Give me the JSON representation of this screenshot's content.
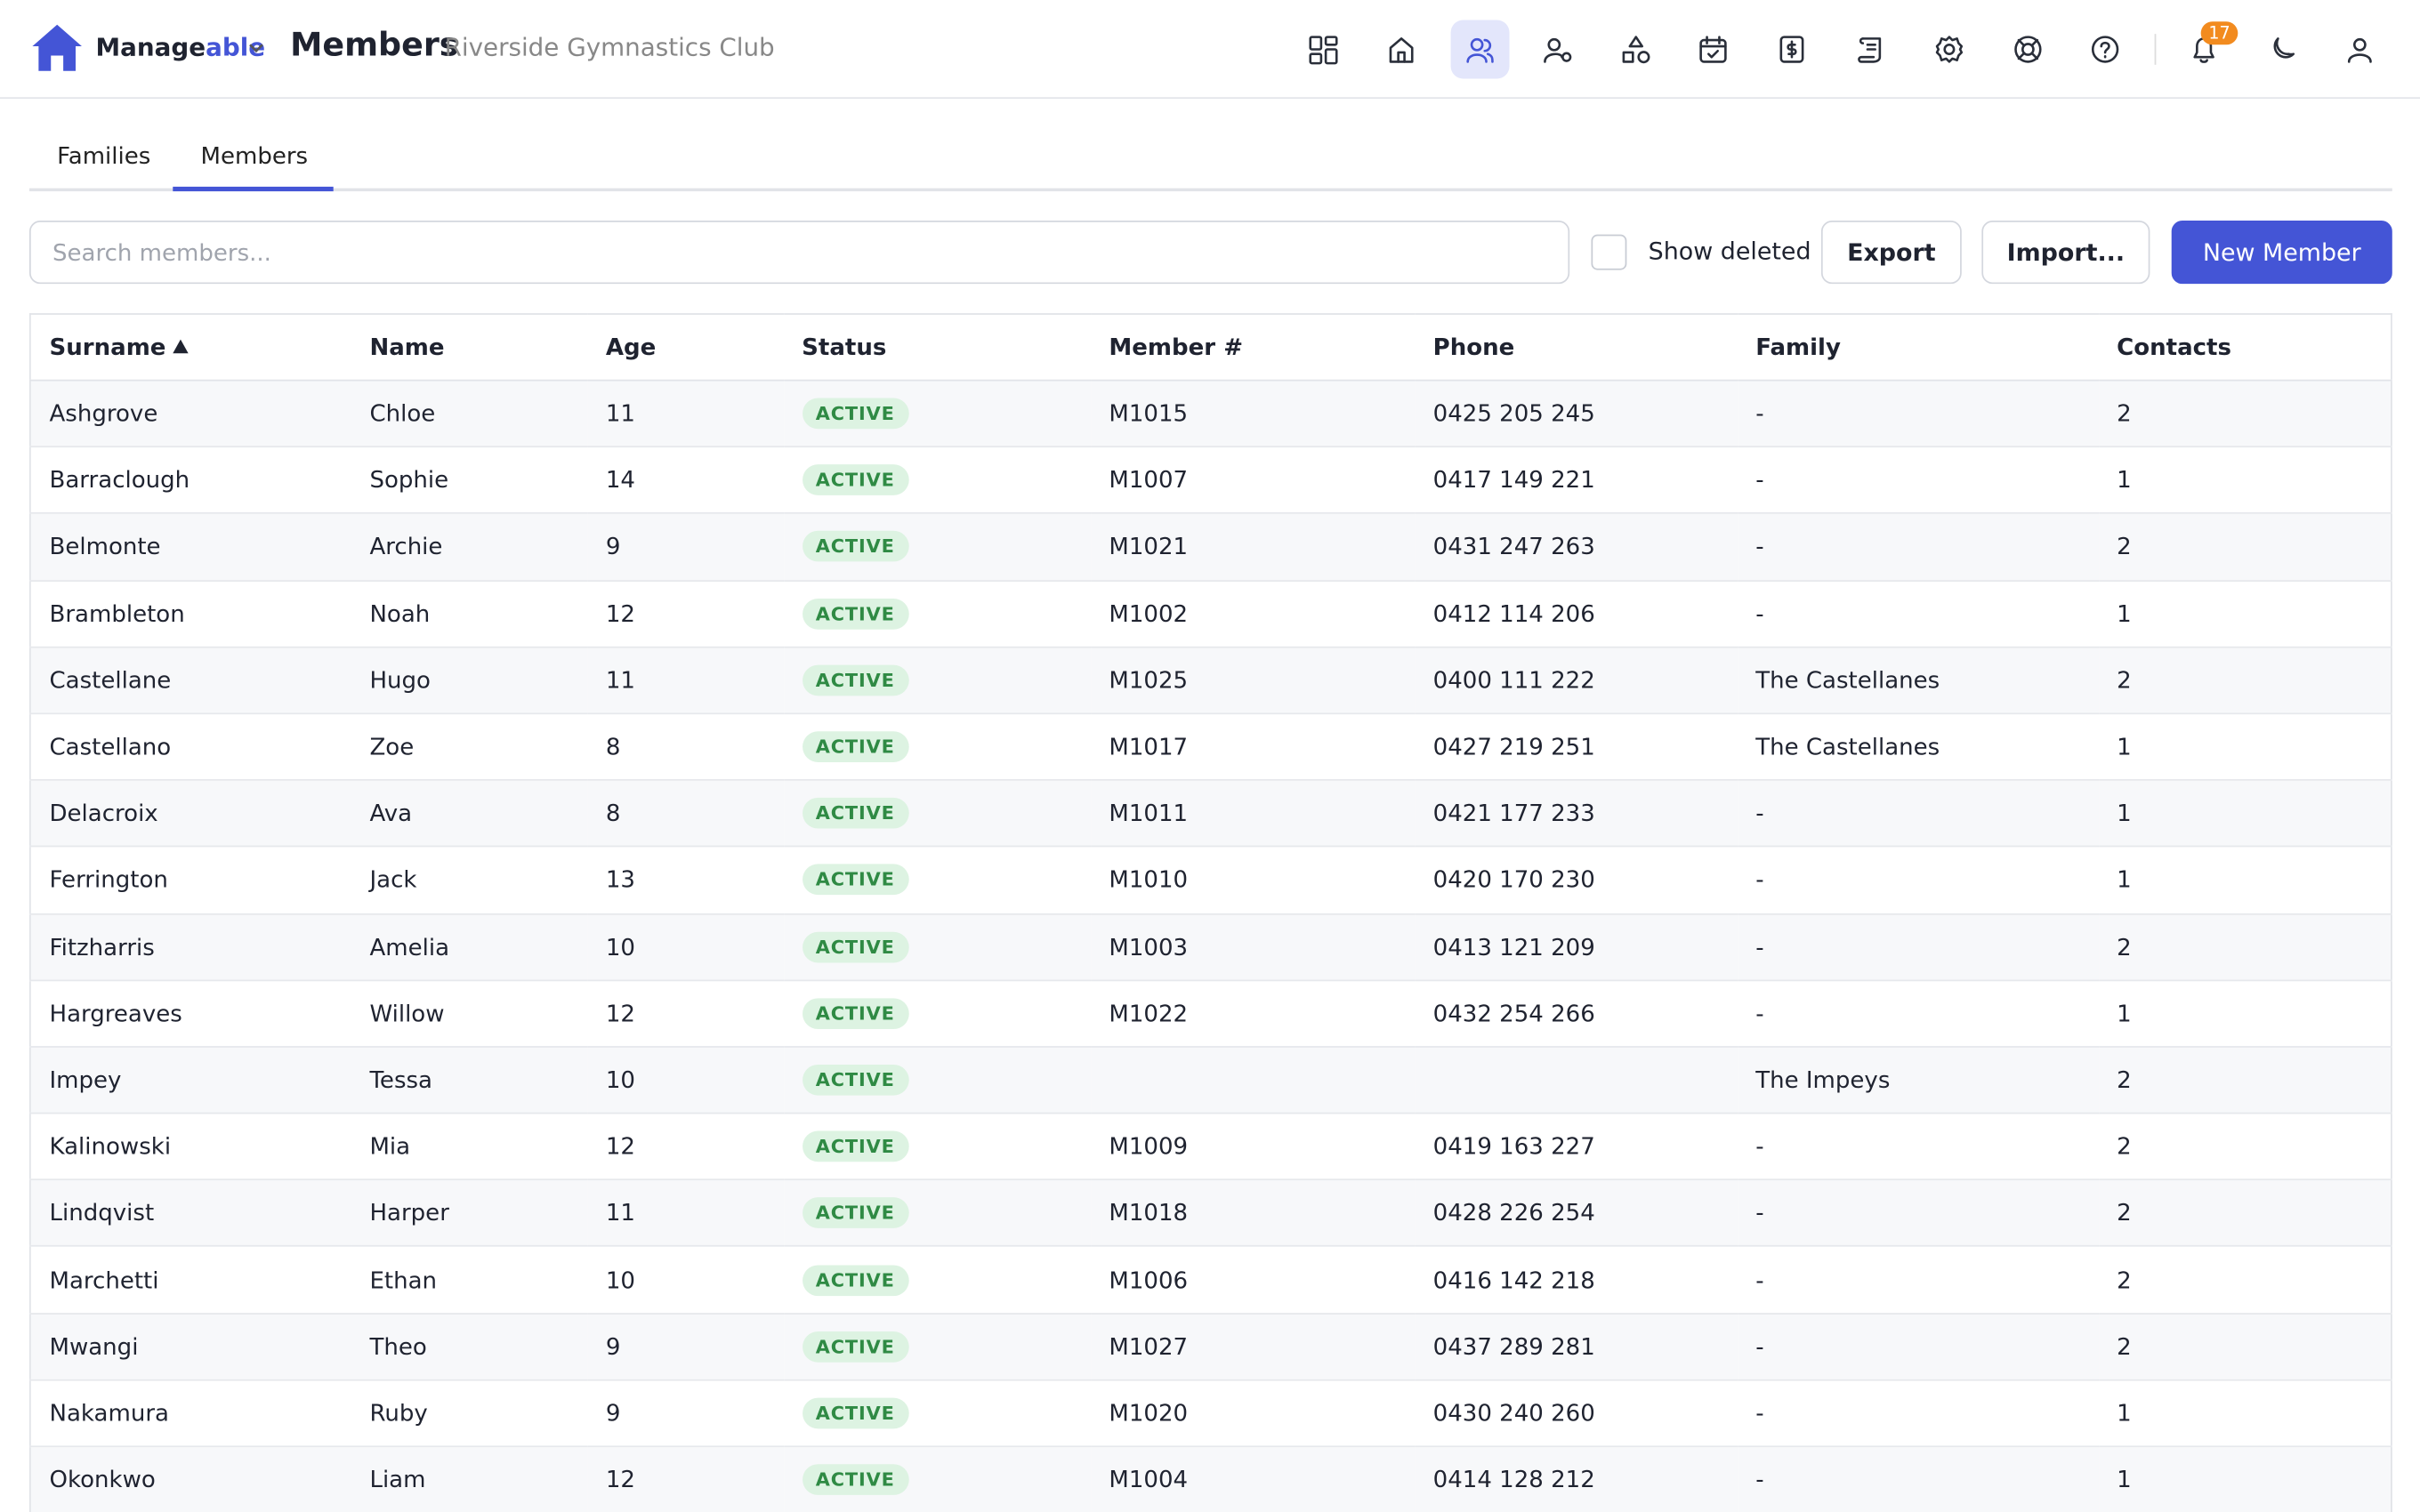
{
  "header": {
    "brand_first": "Manage",
    "brand_second": "able",
    "title": "Members",
    "subtitle": "Riverside Gymnastics Club",
    "notification_count": "17"
  },
  "tabs": [
    "Families",
    "Members"
  ],
  "toolbar": {
    "search_placeholder": "Search members...",
    "show_deleted": "Show deleted",
    "export": "Export",
    "import": "Import...",
    "new_member": "New Member"
  },
  "table": {
    "columns": [
      "Surname",
      "Name",
      "Age",
      "Status",
      "Member #",
      "Phone",
      "Family",
      "Contacts"
    ],
    "rows": [
      [
        "Ashgrove",
        "Chloe",
        "11",
        "ACTIVE",
        "M1015",
        "0425 205 245",
        "-",
        "2"
      ],
      [
        "Barraclough",
        "Sophie",
        "14",
        "ACTIVE",
        "M1007",
        "0417 149 221",
        "-",
        "1"
      ],
      [
        "Belmonte",
        "Archie",
        "9",
        "ACTIVE",
        "M1021",
        "0431 247 263",
        "-",
        "2"
      ],
      [
        "Brambleton",
        "Noah",
        "12",
        "ACTIVE",
        "M1002",
        "0412 114 206",
        "-",
        "1"
      ],
      [
        "Castellane",
        "Hugo",
        "11",
        "ACTIVE",
        "M1025",
        "0400 111 222",
        "The Castellanes",
        "2"
      ],
      [
        "Castellano",
        "Zoe",
        "8",
        "ACTIVE",
        "M1017",
        "0427 219 251",
        "The Castellanes",
        "1"
      ],
      [
        "Delacroix",
        "Ava",
        "8",
        "ACTIVE",
        "M1011",
        "0421 177 233",
        "-",
        "1"
      ],
      [
        "Ferrington",
        "Jack",
        "13",
        "ACTIVE",
        "M1010",
        "0420 170 230",
        "-",
        "1"
      ],
      [
        "Fitzharris",
        "Amelia",
        "10",
        "ACTIVE",
        "M1003",
        "0413 121 209",
        "-",
        "2"
      ],
      [
        "Hargreaves",
        "Willow",
        "12",
        "ACTIVE",
        "M1022",
        "0432 254 266",
        "-",
        "1"
      ],
      [
        "Impey",
        "Tessa",
        "10",
        "ACTIVE",
        null,
        null,
        "The Impeys",
        "2"
      ],
      [
        "Kalinowski",
        "Mia",
        "12",
        "ACTIVE",
        "M1009",
        "0419 163 227",
        "-",
        "2"
      ],
      [
        "Lindqvist",
        "Harper",
        "11",
        "ACTIVE",
        "M1018",
        "0428 226 254",
        "-",
        "2"
      ],
      [
        "Marchetti",
        "Ethan",
        "10",
        "ACTIVE",
        "M1006",
        "0416 142 218",
        "-",
        "2"
      ],
      [
        "Mwangi",
        "Theo",
        "9",
        "ACTIVE",
        "M1027",
        "0437 289 281",
        "-",
        "2"
      ],
      [
        "Nakamura",
        "Ruby",
        "9",
        "ACTIVE",
        "M1020",
        "0430 240 260",
        "-",
        "1"
      ],
      [
        "Okonkwo",
        "Liam",
        "12",
        "ACTIVE",
        "M1004",
        "0414 128 212",
        "-",
        "1"
      ]
    ]
  }
}
